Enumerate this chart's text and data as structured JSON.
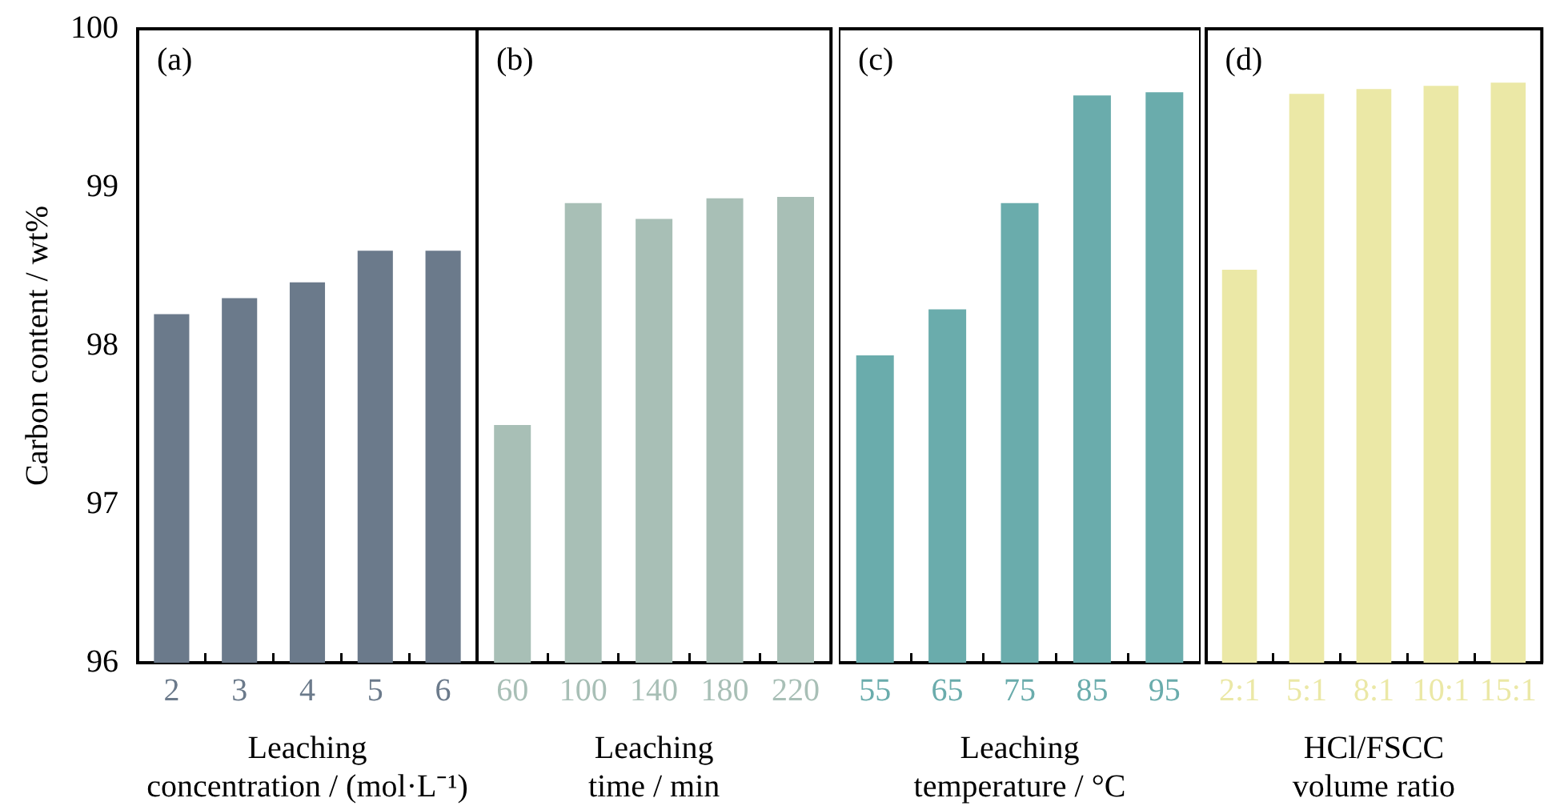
{
  "chart_data": [
    {
      "type": "bar",
      "categories": [
        "2",
        "3",
        "4",
        "5",
        "6"
      ],
      "values": [
        98.2,
        98.3,
        98.4,
        98.6,
        98.6
      ],
      "color": "#6b7a8b",
      "xlabel": "Leaching\nconcentration / (mol·L⁻¹)",
      "ylabel": "Carbon content / wt%",
      "ylim": [
        96,
        100
      ],
      "yticks": [
        96,
        97,
        98,
        99,
        100
      ],
      "annotations": [
        "(a)"
      ]
    },
    {
      "type": "bar",
      "categories": [
        "60",
        "100",
        "140",
        "180",
        "220"
      ],
      "values": [
        97.5,
        98.9,
        98.8,
        98.93,
        98.94
      ],
      "color": "#a8bfb6",
      "xlabel": "Leaching\ntime / min",
      "ylim": [
        96,
        100
      ],
      "yticks": [
        96,
        97,
        98,
        99,
        100
      ],
      "tick_labels": "x",
      "annotations": [
        "(b)"
      ]
    },
    {
      "type": "bar",
      "categories": [
        "55",
        "65",
        "75",
        "85",
        "95"
      ],
      "values": [
        97.94,
        98.23,
        98.9,
        99.58,
        99.6
      ],
      "color": "#6aacac",
      "xlabel": "Leaching\ntemperature / °C",
      "ylim": [
        96,
        100
      ],
      "yticks": [
        96,
        97,
        98,
        99,
        100
      ],
      "tick_labels": "x",
      "annotations": [
        "(c)"
      ]
    },
    {
      "type": "bar",
      "categories": [
        "2:1",
        "5:1",
        "8:1",
        "10:1",
        "15:1"
      ],
      "values": [
        98.48,
        99.59,
        99.62,
        99.64,
        99.66
      ],
      "color": "#ebe8a6",
      "xlabel": "HCl/FSCC\nvolume ratio",
      "ylim": [
        96,
        100
      ],
      "yticks": [
        96,
        97,
        98,
        99,
        100
      ],
      "tick_labels": "x",
      "annotations": [
        "(d)"
      ]
    }
  ]
}
